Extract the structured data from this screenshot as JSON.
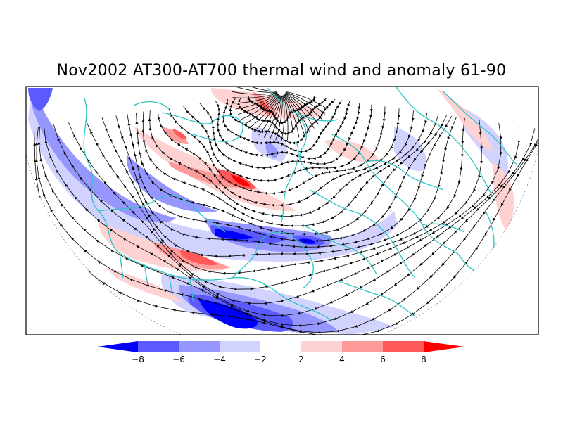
{
  "map": {
    "title": "Nov2002 AT300-AT700 thermal wind and anomaly 61-90",
    "projection": "polar stereographic (northern hemisphere)",
    "layers": [
      "thermal wind streamlines",
      "temperature anomaly shading",
      "continental and country boundaries"
    ],
    "colors": {
      "coastline": "#2ec4c4",
      "streamline": "#000000",
      "frame": "#000000"
    }
  },
  "colorbar": {
    "ticks": [
      "-8",
      "-6",
      "-4",
      "-2",
      "2",
      "4",
      "6",
      "8"
    ],
    "colors": [
      "#0000ff",
      "#5a5aff",
      "#9696ff",
      "#d2d2ff",
      "#ffffff",
      "#ffd2d2",
      "#ff9a9a",
      "#ff5a5a",
      "#ff0000"
    ]
  }
}
